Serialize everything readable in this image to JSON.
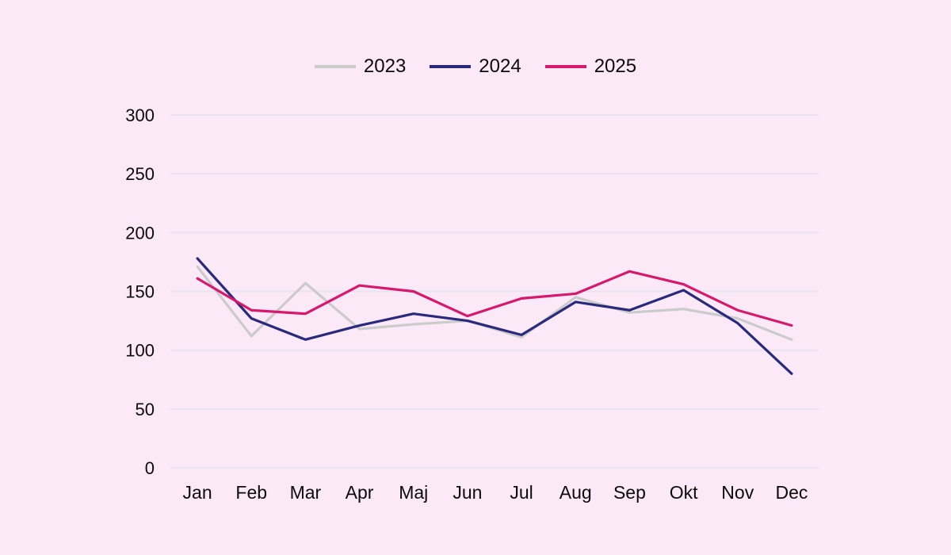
{
  "page": {
    "background_color": "#fbe9f7",
    "gridline_color": "#e9e2ef",
    "text_color": "#0b0b0b"
  },
  "chart_data": {
    "type": "line",
    "title": "",
    "xlabel": "",
    "ylabel": "",
    "categories": [
      "Jan",
      "Feb",
      "Mar",
      "Apr",
      "Maj",
      "Jun",
      "Jul",
      "Aug",
      "Sep",
      "Okt",
      "Nov",
      "Dec"
    ],
    "series": [
      {
        "name": "2023",
        "color": "#cbcbcb",
        "values": [
          171,
          112,
          157,
          118,
          122,
          125,
          111,
          145,
          132,
          135,
          127,
          109
        ]
      },
      {
        "name": "2024",
        "color": "#2a2a7c",
        "values": [
          178,
          127,
          109,
          121,
          131,
          125,
          113,
          141,
          134,
          151,
          123,
          80
        ]
      },
      {
        "name": "2025",
        "color": "#d6196d",
        "values": [
          161,
          134,
          131,
          155,
          150,
          129,
          144,
          148,
          167,
          156,
          134,
          121
        ]
      }
    ],
    "ylim": [
      0,
      300
    ],
    "ytick_step": 50,
    "y_tick_labels": [
      "0",
      "50",
      "100",
      "150",
      "200",
      "250",
      "300"
    ],
    "grid": true,
    "legend_position": "top"
  }
}
